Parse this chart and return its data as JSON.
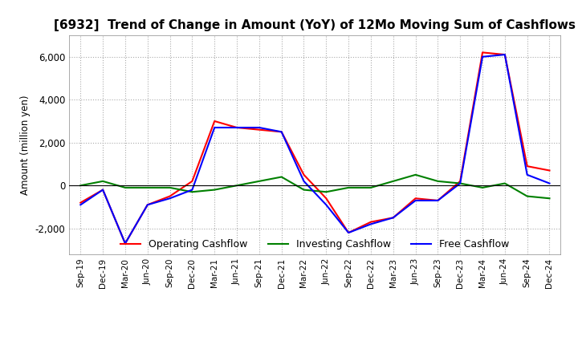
{
  "title": "[6932]  Trend of Change in Amount (YoY) of 12Mo Moving Sum of Cashflows",
  "ylabel": "Amount (million yen)",
  "xlabels": [
    "Sep-19",
    "Dec-19",
    "Mar-20",
    "Jun-20",
    "Sep-20",
    "Dec-20",
    "Mar-21",
    "Jun-21",
    "Sep-21",
    "Dec-21",
    "Mar-22",
    "Jun-22",
    "Sep-22",
    "Dec-22",
    "Mar-23",
    "Jun-23",
    "Sep-23",
    "Dec-23",
    "Mar-24",
    "Jun-24",
    "Sep-24",
    "Dec-24"
  ],
  "operating": [
    -800,
    -200,
    -2700,
    -900,
    -500,
    200,
    3000,
    2700,
    2600,
    2500,
    500,
    -600,
    -2200,
    -1700,
    -1500,
    -600,
    -700,
    200,
    6200,
    6100,
    900,
    700
  ],
  "investing": [
    0,
    200,
    -100,
    -100,
    -100,
    -300,
    -200,
    0,
    200,
    400,
    -200,
    -300,
    -100,
    -100,
    200,
    500,
    200,
    100,
    -100,
    100,
    -500,
    -600
  ],
  "free": [
    -900,
    -200,
    -2700,
    -900,
    -600,
    -200,
    2700,
    2700,
    2700,
    2500,
    200,
    -900,
    -2200,
    -1800,
    -1500,
    -700,
    -700,
    100,
    6000,
    6100,
    500,
    100
  ],
  "ylim": [
    -3200,
    7000
  ],
  "yticks": [
    -2000,
    0,
    2000,
    4000,
    6000
  ],
  "operating_color": "#ff0000",
  "investing_color": "#008000",
  "free_color": "#0000ff",
  "grid_color": "#aaaaaa",
  "background_color": "#ffffff",
  "title_fontsize": 11,
  "legend_labels": [
    "Operating Cashflow",
    "Investing Cashflow",
    "Free Cashflow"
  ]
}
